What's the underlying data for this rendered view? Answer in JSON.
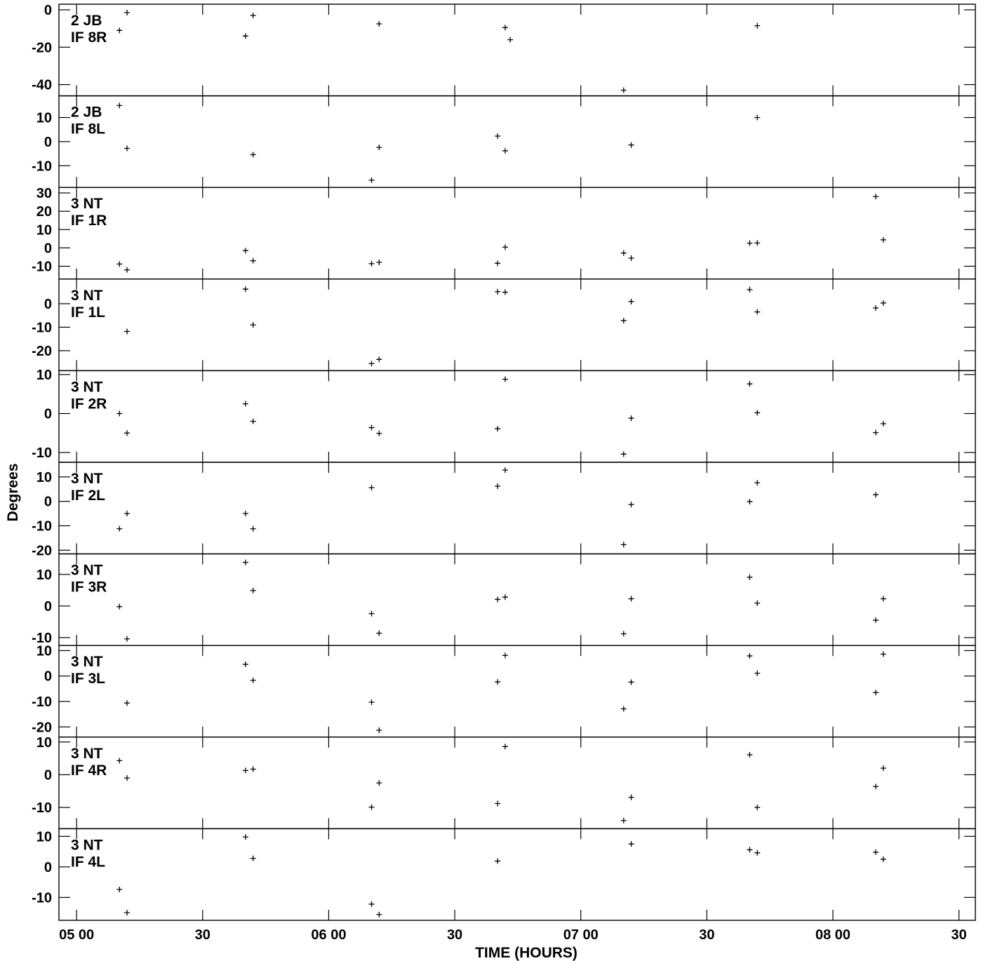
{
  "chart_data": {
    "type": "scatter",
    "xlabel": "TIME (HOURS)",
    "ylabel": "Degrees",
    "xlim": [
      4.93,
      8.565
    ],
    "x_ticks": [
      {
        "value": 5.0,
        "label": "05 00"
      },
      {
        "value": 5.5,
        "label": "30"
      },
      {
        "value": 6.0,
        "label": "06 00"
      },
      {
        "value": 6.5,
        "label": "30"
      },
      {
        "value": 7.0,
        "label": "07 00"
      },
      {
        "value": 7.5,
        "label": "30"
      },
      {
        "value": 8.0,
        "label": "08 00"
      },
      {
        "value": 8.5,
        "label": "30"
      }
    ],
    "marker": "+",
    "panels": [
      {
        "line1": "2 JB",
        "line2": "IF 8R",
        "ylim": [
          -46,
          3
        ],
        "ticks": [
          {
            "value": 0,
            "label": "0"
          },
          {
            "value": -20,
            "label": "-20"
          },
          {
            "value": -40,
            "label": "-40"
          }
        ],
        "points": [
          [
            5.2,
            -1.5
          ],
          [
            5.17,
            -11
          ],
          [
            5.7,
            -3
          ],
          [
            5.67,
            -14
          ],
          [
            6.2,
            -7.5
          ],
          [
            6.7,
            -9.5
          ],
          [
            6.72,
            -16
          ],
          [
            7.17,
            -43
          ],
          [
            7.7,
            -8.5
          ]
        ]
      },
      {
        "line1": "2 JB",
        "line2": "IF 8L",
        "ylim": [
          -19,
          19
        ],
        "ticks": [
          {
            "value": 10,
            "label": "10"
          },
          {
            "value": 0,
            "label": "0"
          },
          {
            "value": -10,
            "label": "-10"
          }
        ],
        "points": [
          [
            5.17,
            15
          ],
          [
            5.2,
            -2.8
          ],
          [
            5.7,
            -5.4
          ],
          [
            6.17,
            -16
          ],
          [
            6.2,
            -2.4
          ],
          [
            6.67,
            2.3
          ],
          [
            6.7,
            -3.8
          ],
          [
            7.2,
            -1.4
          ],
          [
            7.7,
            10
          ]
        ]
      },
      {
        "line1": "3 NT",
        "line2": "IF 1R",
        "ylim": [
          -17,
          33
        ],
        "ticks": [
          {
            "value": 30,
            "label": "30"
          },
          {
            "value": 20,
            "label": "20"
          },
          {
            "value": 10,
            "label": "10"
          },
          {
            "value": 0,
            "label": "0"
          },
          {
            "value": -10,
            "label": "-10"
          }
        ],
        "points": [
          [
            5.17,
            -8.8
          ],
          [
            5.2,
            -12
          ],
          [
            5.67,
            -1.5
          ],
          [
            5.7,
            -7
          ],
          [
            6.17,
            -8.6
          ],
          [
            6.2,
            -7.9
          ],
          [
            6.67,
            -8.4
          ],
          [
            6.7,
            0.4
          ],
          [
            7.17,
            -2.8
          ],
          [
            7.2,
            -5.6
          ],
          [
            7.67,
            2.6
          ],
          [
            7.7,
            2.7
          ],
          [
            8.17,
            28
          ],
          [
            8.2,
            4.4
          ]
        ]
      },
      {
        "line1": "3 NT",
        "line2": "IF 1L",
        "ylim": [
          -28.5,
          10.5
        ],
        "ticks": [
          {
            "value": 0,
            "label": "0"
          },
          {
            "value": -10,
            "label": "-10"
          },
          {
            "value": -20,
            "label": "-20"
          }
        ],
        "points": [
          [
            5.2,
            -11.8
          ],
          [
            5.67,
            6.2
          ],
          [
            5.7,
            -9
          ],
          [
            6.17,
            -25.5
          ],
          [
            6.2,
            -23.7
          ],
          [
            6.67,
            5.1
          ],
          [
            6.7,
            4.9
          ],
          [
            7.17,
            -7.2
          ],
          [
            7.2,
            0.9
          ],
          [
            7.67,
            6
          ],
          [
            7.7,
            -3.5
          ],
          [
            8.17,
            -1.8
          ],
          [
            8.2,
            0.3
          ]
        ]
      },
      {
        "line1": "3 NT",
        "line2": "IF 2R",
        "ylim": [
          -12.5,
          11
        ],
        "ticks": [
          {
            "value": 10,
            "label": "10"
          },
          {
            "value": 0,
            "label": "0"
          },
          {
            "value": -10,
            "label": "-10"
          }
        ],
        "points": [
          [
            5.17,
            0
          ],
          [
            5.2,
            -5
          ],
          [
            5.67,
            2.5
          ],
          [
            5.7,
            -2
          ],
          [
            6.17,
            -3.6
          ],
          [
            6.2,
            -5.1
          ],
          [
            6.67,
            -3.9
          ],
          [
            6.7,
            8.8
          ],
          [
            7.17,
            -10.4
          ],
          [
            7.2,
            -1.2
          ],
          [
            7.67,
            7.6
          ],
          [
            7.7,
            0.2
          ],
          [
            8.17,
            -4.9
          ],
          [
            8.2,
            -2.6
          ]
        ]
      },
      {
        "line1": "3 NT",
        "line2": "IF 2L",
        "ylim": [
          -21.5,
          16
        ],
        "ticks": [
          {
            "value": 10,
            "label": "10"
          },
          {
            "value": 0,
            "label": "0"
          },
          {
            "value": -10,
            "label": "-10"
          },
          {
            "value": -20,
            "label": "-20"
          }
        ],
        "points": [
          [
            5.17,
            -11.2
          ],
          [
            5.2,
            -5
          ],
          [
            5.67,
            -5
          ],
          [
            5.7,
            -11.2
          ],
          [
            6.17,
            5.6
          ],
          [
            6.67,
            6.2
          ],
          [
            6.7,
            12.8
          ],
          [
            7.17,
            -17.7
          ],
          [
            7.2,
            -1.3
          ],
          [
            7.67,
            -0.1
          ],
          [
            7.7,
            7.6
          ],
          [
            8.17,
            2.7
          ]
        ]
      },
      {
        "line1": "3 NT",
        "line2": "IF 3R",
        "ylim": [
          -12.5,
          16.5
        ],
        "ticks": [
          {
            "value": 10,
            "label": "10"
          },
          {
            "value": 0,
            "label": "0"
          },
          {
            "value": -10,
            "label": "-10"
          }
        ],
        "points": [
          [
            5.17,
            -0.2
          ],
          [
            5.2,
            -10.4
          ],
          [
            5.67,
            13.8
          ],
          [
            5.7,
            4.9
          ],
          [
            6.17,
            -2.4
          ],
          [
            6.2,
            -8.6
          ],
          [
            6.67,
            2.1
          ],
          [
            6.7,
            2.8
          ],
          [
            7.17,
            -8.8
          ],
          [
            7.2,
            2.3
          ],
          [
            7.67,
            9.1
          ],
          [
            7.7,
            0.9
          ],
          [
            8.17,
            -4.5
          ],
          [
            8.2,
            2.3
          ]
        ]
      },
      {
        "line1": "3 NT",
        "line2": "IF 3L",
        "ylim": [
          -24,
          12
        ],
        "ticks": [
          {
            "value": 10,
            "label": "10"
          },
          {
            "value": 0,
            "label": "0"
          },
          {
            "value": -10,
            "label": "-10"
          },
          {
            "value": -20,
            "label": "-20"
          }
        ],
        "points": [
          [
            5.2,
            -10.6
          ],
          [
            5.67,
            4.6
          ],
          [
            5.7,
            -1.7
          ],
          [
            6.17,
            -10.3
          ],
          [
            6.2,
            -21.3
          ],
          [
            6.67,
            -2.3
          ],
          [
            6.7,
            8.1
          ],
          [
            7.17,
            -12.9
          ],
          [
            7.2,
            -2.4
          ],
          [
            7.67,
            7.9
          ],
          [
            7.7,
            1.1
          ],
          [
            8.17,
            -6.5
          ],
          [
            8.2,
            8.6
          ]
        ]
      },
      {
        "line1": "3 NT",
        "line2": "IF 4R",
        "ylim": [
          -16.5,
          11.5
        ],
        "ticks": [
          {
            "value": 10,
            "label": "10"
          },
          {
            "value": 0,
            "label": "0"
          },
          {
            "value": -10,
            "label": "-10"
          }
        ],
        "points": [
          [
            5.17,
            4.3
          ],
          [
            5.2,
            -1
          ],
          [
            5.67,
            1.3
          ],
          [
            5.7,
            1.7
          ],
          [
            6.17,
            -9.9
          ],
          [
            6.2,
            -2.5
          ],
          [
            6.67,
            -8.8
          ],
          [
            6.7,
            8.6
          ],
          [
            7.17,
            -14
          ],
          [
            7.2,
            -6.9
          ],
          [
            7.67,
            6.1
          ],
          [
            7.7,
            -10
          ],
          [
            8.17,
            -3.6
          ],
          [
            8.2,
            2
          ]
        ]
      },
      {
        "line1": "3 NT",
        "line2": "IF 4L",
        "ylim": [
          -17.5,
          12.5
        ],
        "ticks": [
          {
            "value": 10,
            "label": "10"
          },
          {
            "value": 0,
            "label": "0"
          },
          {
            "value": -10,
            "label": "-10"
          }
        ],
        "points": [
          [
            5.17,
            -7.4
          ],
          [
            5.2,
            -15
          ],
          [
            5.67,
            9.8
          ],
          [
            5.7,
            2.8
          ],
          [
            6.17,
            -12.2
          ],
          [
            6.2,
            -15.6
          ],
          [
            6.67,
            1.9
          ],
          [
            7.2,
            7.5
          ],
          [
            7.67,
            5.6
          ],
          [
            7.7,
            4.6
          ],
          [
            8.17,
            4.8
          ],
          [
            8.2,
            2.5
          ]
        ]
      }
    ]
  }
}
